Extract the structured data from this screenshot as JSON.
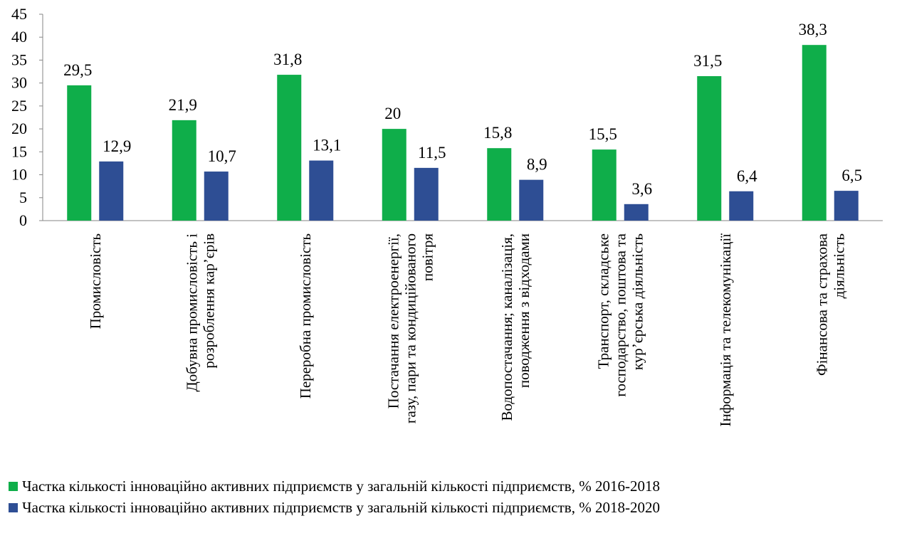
{
  "chart_data": {
    "type": "bar",
    "title": "",
    "xlabel": "",
    "ylabel": "",
    "ylim": [
      0,
      45
    ],
    "yticks": [
      0,
      5,
      10,
      15,
      20,
      25,
      30,
      35,
      40,
      45
    ],
    "grid": false,
    "legend_position": "bottom",
    "categories": [
      [
        "Промисловість"
      ],
      [
        "Добувна промисловість і",
        "розроблення кар’єрів"
      ],
      [
        "Переробна промисловість"
      ],
      [
        "Постачання електроенергії,",
        "газу, пари та кондиційованого",
        "повітря"
      ],
      [
        "Водопостачання; каналізація,",
        "поводження з відходами"
      ],
      [
        "Транспорт,  складське",
        "господарство, поштова та",
        "кур’єрська  діяльність"
      ],
      [
        "Інформація та телекомунікації"
      ],
      [
        "Фінансова та страхова",
        "діяльність"
      ]
    ],
    "series": [
      {
        "name": "Частка кількості інноваційно активних підприємств у загальній кількості підприємств, %  2016-2018",
        "color": "#0fae4a",
        "values": [
          29.5,
          21.9,
          31.8,
          20,
          15.8,
          15.5,
          31.5,
          38.3
        ],
        "labels": [
          "29,5",
          "21,9",
          "31,8",
          "20",
          "15,8",
          "15,5",
          "31,5",
          "38,3"
        ]
      },
      {
        "name": "Частка кількості інноваційно активних підприємств у загальній кількості підприємств, %  2018-2020",
        "color": "#2e4e94",
        "values": [
          12.9,
          10.7,
          13.1,
          11.5,
          8.9,
          3.6,
          6.4,
          6.5
        ],
        "labels": [
          "12,9",
          "10,7",
          "13,1",
          "11,5",
          "8,9",
          "3,6",
          "6,4",
          "6,5"
        ]
      }
    ]
  }
}
